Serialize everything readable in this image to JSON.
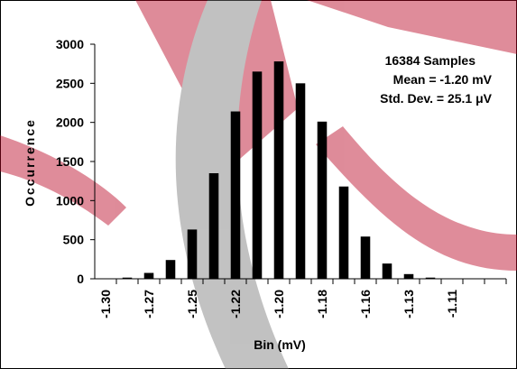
{
  "chart_data": {
    "type": "bar",
    "categories": [
      "-1.30",
      null,
      "-1.27",
      null,
      "-1.25",
      null,
      "-1.22",
      null,
      "-1.20",
      null,
      "-1.18",
      null,
      "-1.16",
      null,
      "-1.13",
      null,
      "-1.11",
      null,
      null
    ],
    "values": [
      0,
      15,
      75,
      240,
      630,
      1350,
      2140,
      2650,
      2780,
      2500,
      2010,
      1180,
      540,
      195,
      60,
      15,
      5,
      0,
      0
    ],
    "color": "#000000",
    "ylim": [
      0,
      3000
    ],
    "yticks": [
      0,
      500,
      1000,
      1500,
      2000,
      2500,
      3000
    ],
    "x_label": "Bin (mV)",
    "y_label": "Occurrence",
    "annotations": [
      "16384 Samples",
      "Mean = -1.20 mV",
      "Std. Dev. = 25.1 μV"
    ],
    "grid": false
  }
}
